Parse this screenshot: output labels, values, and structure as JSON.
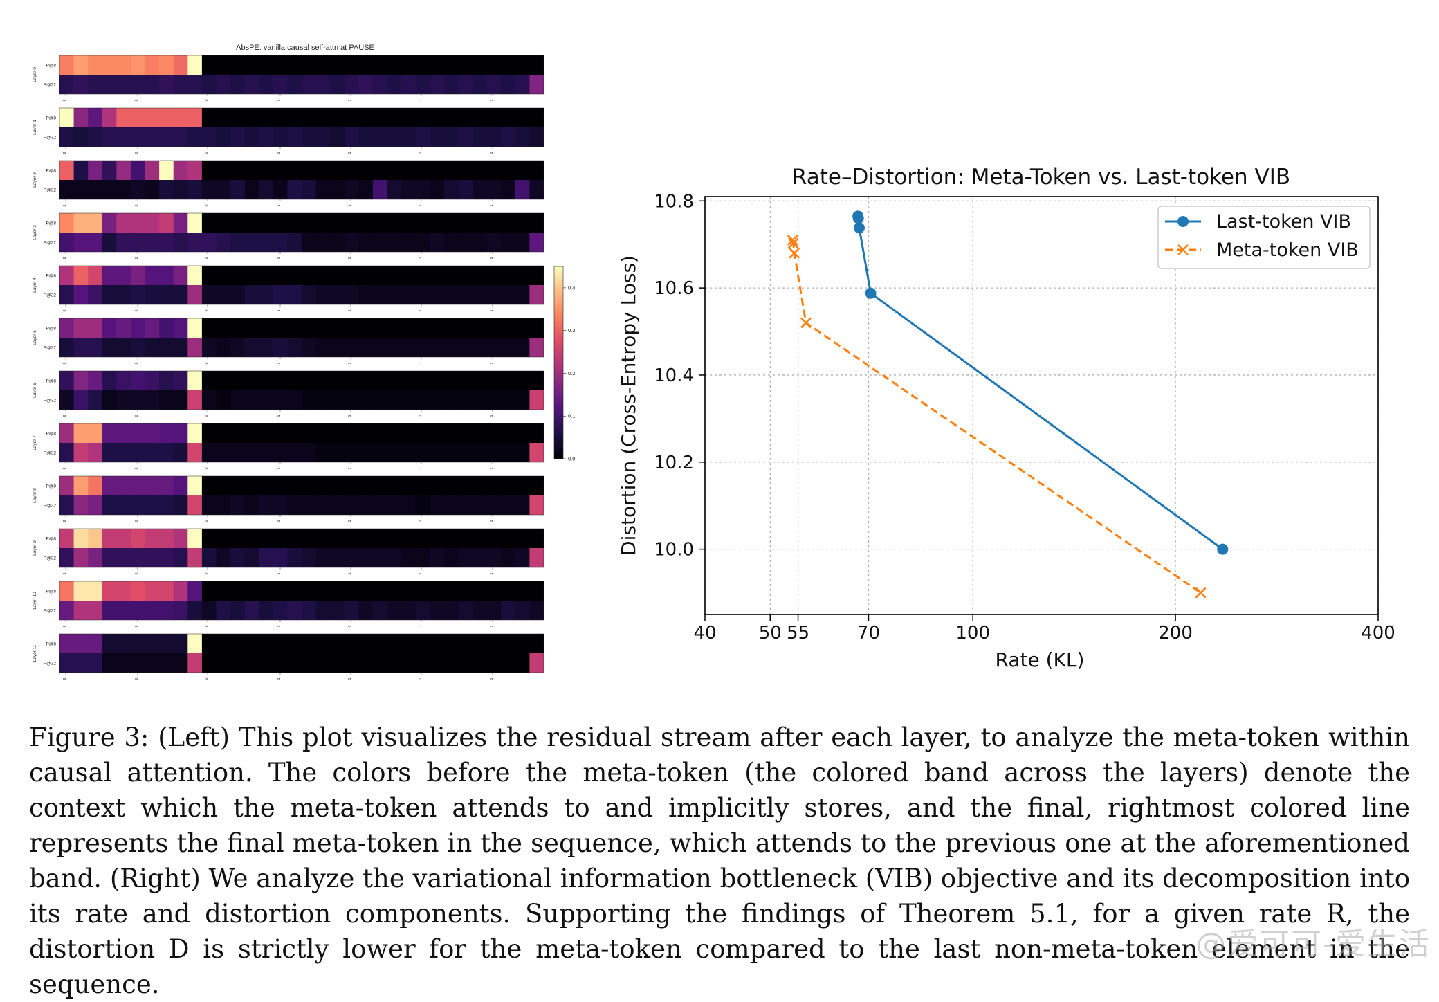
{
  "heatmap": {
    "title": "AbsPE: vanilla causal self-attn at PAUSE",
    "row_labels": [
      "P@8",
      "P@32"
    ],
    "layers": [
      {
        "label": "Layer 0",
        "top": [
          0.33,
          0.36,
          0.34,
          0.34,
          0.34,
          0.35,
          0.33,
          0.34,
          0.31,
          0.45,
          0,
          0,
          0,
          0,
          0,
          0,
          0,
          0,
          0,
          0,
          0,
          0,
          0,
          0,
          0,
          0,
          0,
          0,
          0,
          0,
          0,
          0,
          0,
          0
        ],
        "bottom": [
          0.07,
          0.08,
          0.07,
          0.07,
          0.07,
          0.07,
          0.07,
          0.08,
          0.07,
          0.07,
          0.06,
          0.07,
          0.06,
          0.07,
          0.06,
          0.07,
          0.06,
          0.07,
          0.07,
          0.06,
          0.07,
          0.08,
          0.07,
          0.06,
          0.07,
          0.06,
          0.07,
          0.06,
          0.07,
          0.06,
          0.07,
          0.06,
          0.07,
          0.17
        ]
      },
      {
        "label": "Layer 1",
        "top": [
          0.45,
          0.18,
          0.13,
          0.22,
          0.3,
          0.3,
          0.3,
          0.3,
          0.3,
          0.3,
          0,
          0,
          0,
          0,
          0,
          0,
          0,
          0,
          0,
          0,
          0,
          0,
          0,
          0,
          0,
          0,
          0,
          0,
          0,
          0,
          0,
          0,
          0,
          0
        ],
        "bottom": [
          0.06,
          0.05,
          0.06,
          0.07,
          0.07,
          0.07,
          0.07,
          0.07,
          0.07,
          0.06,
          0.06,
          0.05,
          0.06,
          0.05,
          0.06,
          0.05,
          0.06,
          0.05,
          0.05,
          0.04,
          0.06,
          0.05,
          0.05,
          0.05,
          0.05,
          0.06,
          0.05,
          0.05,
          0.06,
          0.05,
          0.05,
          0.06,
          0.05,
          0.04
        ]
      },
      {
        "label": "Layer 2",
        "top": [
          0.3,
          0.06,
          0.16,
          0.08,
          0.19,
          0.1,
          0.2,
          0.45,
          0.2,
          0.22,
          0,
          0,
          0,
          0,
          0,
          0,
          0,
          0,
          0,
          0,
          0,
          0,
          0,
          0,
          0,
          0,
          0,
          0,
          0,
          0,
          0,
          0,
          0,
          0
        ],
        "bottom": [
          0.02,
          0.02,
          0.02,
          0.02,
          0.02,
          0.03,
          0.02,
          0.05,
          0.04,
          0.05,
          0.03,
          0.03,
          0.05,
          0.02,
          0.04,
          0.02,
          0.06,
          0.05,
          0.02,
          0.02,
          0.03,
          0.02,
          0.1,
          0.04,
          0.03,
          0.03,
          0.02,
          0.04,
          0.05,
          0.03,
          0.03,
          0.02,
          0.1,
          0.03
        ]
      },
      {
        "label": "Layer 3",
        "top": [
          0.34,
          0.38,
          0.38,
          0.16,
          0.22,
          0.22,
          0.22,
          0.24,
          0.16,
          0.45,
          0,
          0,
          0,
          0,
          0,
          0,
          0,
          0,
          0,
          0,
          0,
          0,
          0,
          0,
          0,
          0,
          0,
          0,
          0,
          0,
          0,
          0,
          0,
          0
        ],
        "bottom": [
          0.1,
          0.12,
          0.12,
          0.05,
          0.08,
          0.08,
          0.08,
          0.08,
          0.07,
          0.08,
          0.08,
          0.07,
          0.06,
          0.06,
          0.06,
          0.06,
          0.05,
          0.02,
          0.02,
          0.02,
          0.03,
          0.02,
          0.02,
          0.02,
          0.02,
          0.02,
          0.03,
          0.02,
          0.02,
          0.02,
          0.03,
          0.02,
          0.02,
          0.13
        ]
      },
      {
        "label": "Layer 4",
        "top": [
          0.22,
          0.3,
          0.26,
          0.13,
          0.13,
          0.16,
          0.12,
          0.12,
          0.16,
          0.45,
          0,
          0,
          0,
          0,
          0,
          0,
          0,
          0,
          0,
          0,
          0,
          0,
          0,
          0,
          0,
          0,
          0,
          0,
          0,
          0,
          0,
          0,
          0,
          0
        ],
        "bottom": [
          0.07,
          0.12,
          0.09,
          0.05,
          0.05,
          0.06,
          0.05,
          0.05,
          0.05,
          0.2,
          0.03,
          0.03,
          0.03,
          0.05,
          0.05,
          0.06,
          0.06,
          0.04,
          0.03,
          0.03,
          0.03,
          0.02,
          0.02,
          0.02,
          0.02,
          0.02,
          0.02,
          0.02,
          0.02,
          0.02,
          0.02,
          0.02,
          0.02,
          0.2
        ]
      },
      {
        "label": "Layer 5",
        "top": [
          0.16,
          0.2,
          0.2,
          0.12,
          0.14,
          0.12,
          0.14,
          0.1,
          0.12,
          0.45,
          0,
          0,
          0,
          0,
          0,
          0,
          0,
          0,
          0,
          0,
          0,
          0,
          0,
          0,
          0,
          0,
          0,
          0,
          0,
          0,
          0,
          0,
          0,
          0
        ],
        "bottom": [
          0.05,
          0.07,
          0.07,
          0.04,
          0.04,
          0.05,
          0.04,
          0.04,
          0.04,
          0.2,
          0.03,
          0.02,
          0.03,
          0.04,
          0.04,
          0.05,
          0.04,
          0.03,
          0.02,
          0.02,
          0.02,
          0.02,
          0.02,
          0.02,
          0.02,
          0.02,
          0.02,
          0.02,
          0.02,
          0.02,
          0.02,
          0.02,
          0.02,
          0.2
        ]
      },
      {
        "label": "Layer 6",
        "top": [
          0.08,
          0.17,
          0.14,
          0.07,
          0.09,
          0.1,
          0.09,
          0.07,
          0.08,
          0.45,
          0,
          0,
          0,
          0,
          0,
          0,
          0,
          0,
          0,
          0,
          0,
          0,
          0,
          0,
          0,
          0,
          0,
          0,
          0,
          0,
          0,
          0,
          0,
          0
        ],
        "bottom": [
          0.03,
          0.09,
          0.06,
          0.02,
          0.03,
          0.03,
          0.03,
          0.02,
          0.02,
          0.25,
          0.02,
          0.01,
          0.02,
          0.02,
          0.02,
          0.02,
          0.02,
          0.01,
          0.01,
          0.01,
          0.01,
          0.01,
          0.01,
          0.01,
          0.01,
          0.01,
          0.01,
          0.01,
          0.01,
          0.01,
          0.01,
          0.01,
          0.01,
          0.25
        ]
      },
      {
        "label": "Layer 7",
        "top": [
          0.2,
          0.36,
          0.36,
          0.13,
          0.13,
          0.13,
          0.13,
          0.12,
          0.12,
          0.45,
          0,
          0,
          0,
          0,
          0,
          0,
          0,
          0,
          0,
          0,
          0,
          0,
          0,
          0,
          0,
          0,
          0,
          0,
          0,
          0,
          0,
          0,
          0,
          0
        ],
        "bottom": [
          0.07,
          0.24,
          0.22,
          0.06,
          0.06,
          0.06,
          0.06,
          0.06,
          0.05,
          0.26,
          0.02,
          0.02,
          0.02,
          0.02,
          0.02,
          0.02,
          0.02,
          0.02,
          0.01,
          0.01,
          0.01,
          0.01,
          0.01,
          0.01,
          0.01,
          0.01,
          0.01,
          0.01,
          0.01,
          0.01,
          0.01,
          0.01,
          0.01,
          0.26
        ]
      },
      {
        "label": "Layer 8",
        "top": [
          0.2,
          0.36,
          0.32,
          0.14,
          0.14,
          0.14,
          0.14,
          0.14,
          0.12,
          0.45,
          0,
          0,
          0,
          0,
          0,
          0,
          0,
          0,
          0,
          0,
          0,
          0,
          0,
          0,
          0,
          0,
          0,
          0,
          0,
          0,
          0,
          0,
          0,
          0
        ],
        "bottom": [
          0.07,
          0.18,
          0.16,
          0.06,
          0.06,
          0.06,
          0.06,
          0.06,
          0.05,
          0.26,
          0.02,
          0.02,
          0.03,
          0.02,
          0.03,
          0.03,
          0.02,
          0.02,
          0.02,
          0.02,
          0.02,
          0.02,
          0.02,
          0.02,
          0.02,
          0.01,
          0.02,
          0.02,
          0.02,
          0.02,
          0.02,
          0.02,
          0.02,
          0.26
        ]
      },
      {
        "label": "Layer 9",
        "top": [
          0.24,
          0.42,
          0.4,
          0.24,
          0.24,
          0.26,
          0.24,
          0.24,
          0.22,
          0.45,
          0,
          0,
          0,
          0,
          0,
          0,
          0,
          0,
          0,
          0,
          0,
          0,
          0,
          0,
          0,
          0,
          0,
          0,
          0,
          0,
          0,
          0,
          0,
          0
        ],
        "bottom": [
          0.08,
          0.2,
          0.16,
          0.08,
          0.08,
          0.08,
          0.08,
          0.08,
          0.07,
          0.24,
          0.05,
          0.03,
          0.05,
          0.04,
          0.07,
          0.07,
          0.05,
          0.04,
          0.03,
          0.03,
          0.03,
          0.03,
          0.03,
          0.03,
          0.02,
          0.02,
          0.03,
          0.02,
          0.03,
          0.03,
          0.03,
          0.02,
          0.03,
          0.24
        ]
      },
      {
        "label": "Layer 10",
        "top": [
          0.32,
          0.43,
          0.43,
          0.26,
          0.26,
          0.28,
          0.26,
          0.26,
          0.22,
          0.12,
          0,
          0,
          0,
          0,
          0,
          0,
          0,
          0,
          0,
          0,
          0,
          0,
          0,
          0,
          0,
          0,
          0,
          0,
          0,
          0,
          0,
          0,
          0,
          0
        ],
        "bottom": [
          0.14,
          0.22,
          0.22,
          0.1,
          0.1,
          0.1,
          0.1,
          0.1,
          0.09,
          0.05,
          0.03,
          0.06,
          0.05,
          0.07,
          0.05,
          0.06,
          0.07,
          0.06,
          0.04,
          0.04,
          0.05,
          0.03,
          0.04,
          0.03,
          0.03,
          0.04,
          0.03,
          0.03,
          0.04,
          0.03,
          0.03,
          0.05,
          0.04,
          0.03
        ]
      },
      {
        "label": "Layer 11",
        "top": [
          0.14,
          0.14,
          0.14,
          0.04,
          0.04,
          0.04,
          0.04,
          0.04,
          0.04,
          0.45,
          0,
          0,
          0,
          0,
          0,
          0,
          0,
          0,
          0,
          0,
          0,
          0,
          0,
          0,
          0,
          0,
          0,
          0,
          0,
          0,
          0,
          0,
          0,
          0
        ],
        "bottom": [
          0.07,
          0.07,
          0.07,
          0.02,
          0.02,
          0.02,
          0.02,
          0.02,
          0.02,
          0.24,
          0,
          0,
          0,
          0,
          0,
          0,
          0,
          0,
          0,
          0,
          0,
          0,
          0,
          0,
          0,
          0,
          0,
          0,
          0,
          0,
          0,
          0,
          0,
          0.24
        ]
      }
    ],
    "x_tick_labels": [
      "8",
      "0",
      "0",
      "1",
      "1",
      "1",
      "1",
      "2",
      "1"
    ],
    "colorbar": {
      "min": 0.0,
      "max": 0.45,
      "ticks": [
        "0.0",
        "0.1",
        "0.2",
        "0.3",
        "0.4"
      ],
      "tick_values": [
        0.0,
        0.1,
        0.2,
        0.3,
        0.4
      ]
    }
  },
  "chart_data": {
    "type": "line",
    "title": "Rate–Distortion: Meta-Token  vs. Last-token VIB",
    "xlabel": "Rate (KL)",
    "ylabel": "Distortion (Cross-Entropy Loss)",
    "xscale": "log",
    "xlim": [
      40,
      400
    ],
    "ylim": [
      9.85,
      10.81
    ],
    "x_ticks": [
      40,
      50,
      55,
      70,
      100,
      200,
      400
    ],
    "x_tick_labels": [
      "40",
      "50",
      "55",
      "70",
      "100",
      "200",
      "400"
    ],
    "y_ticks": [
      10.0,
      10.2,
      10.4,
      10.6,
      10.8
    ],
    "y_tick_labels": [
      "10.0",
      "10.2",
      "10.4",
      "10.6",
      "10.8"
    ],
    "grid": true,
    "legend_position": "upper right",
    "series": [
      {
        "name": "Last-token VIB",
        "color": "#1f77b4",
        "marker": "circle",
        "linestyle": "solid",
        "x": [
          67.5,
          67.6,
          67.8,
          70.5,
          235
        ],
        "y": [
          10.765,
          10.76,
          10.738,
          10.588,
          10.0
        ]
      },
      {
        "name": "Meta-token VIB",
        "color": "#ff7f0e",
        "marker": "x",
        "linestyle": "dashed",
        "x": [
          54.0,
          54.1,
          54.3,
          56.5,
          218
        ],
        "y": [
          10.71,
          10.703,
          10.68,
          10.52,
          9.9
        ]
      }
    ]
  },
  "caption": {
    "text": "Figure 3: (Left) This plot visualizes the residual stream after each layer, to analyze the meta-token within causal attention. The colors before the meta-token (the colored band across the layers) denote the context which the meta-token attends to and implicitly stores, and the final, rightmost colored line represents the final meta-token in the sequence, which attends to the previous one at the aforementioned band. (Right) We analyze the variational information bottleneck (VIB) objective and its decomposition into its rate and distortion components. Supporting the findings of Theorem 5.1, for a given rate R, the distortion D is strictly lower for the meta-token compared to the last non-meta-token element in the sequence."
  },
  "watermark": "@爱可可-爱生活"
}
